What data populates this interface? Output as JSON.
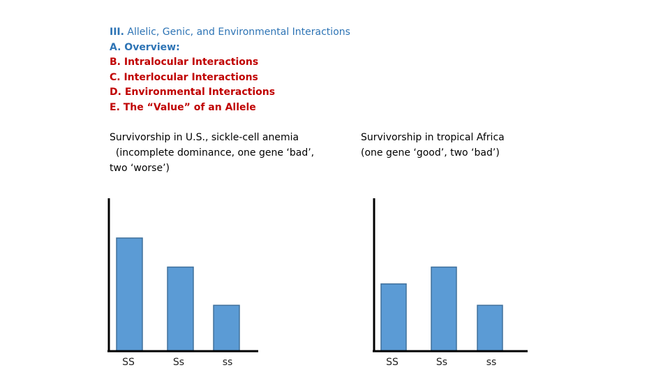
{
  "outline": {
    "heading_prefix": "III.",
    "heading_text": " Allelic, Genic, and Environmental Interactions",
    "items": [
      "A. Overview:",
      "B. Intralocular Interactions",
      "C. Interlocular Interactions",
      "D. Environmental Interactions",
      "E. The “Value” of an Allele"
    ],
    "colors": {
      "heading": "#2e74b5",
      "items": "#c00000"
    }
  },
  "captions": {
    "left": [
      "Survivorship in U.S., sickle-cell anemia",
      "  (incomplete dominance, one gene ‘bad’,",
      "two ‘worse’)"
    ],
    "right": [
      "Survivorship in tropical Africa",
      "(one gene ‘good’, two ‘bad’)"
    ]
  },
  "chart_data": [
    {
      "type": "bar",
      "categories": [
        "SS",
        "Ss",
        "ss"
      ],
      "values": [
        0.74,
        0.55,
        0.3
      ],
      "ylim": [
        0,
        1
      ],
      "bar_color": "#5b9bd5",
      "grid": false,
      "legend": "none"
    },
    {
      "type": "bar",
      "categories": [
        "SS",
        "Ss",
        "ss"
      ],
      "values": [
        0.44,
        0.55,
        0.3
      ],
      "ylim": [
        0,
        1
      ],
      "bar_color": "#5b9bd5",
      "grid": false,
      "legend": "none"
    }
  ]
}
